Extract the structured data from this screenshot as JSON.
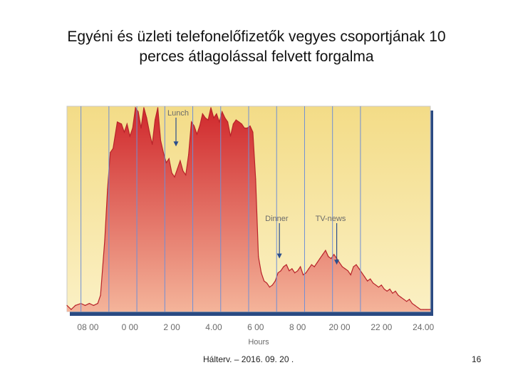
{
  "slide": {
    "title_line1": "Egyéni és üzleti telefonelőfizetők vegyes csoportjának  10",
    "title_line2": "perces átlagolással felvett forgalma",
    "footer": "Hálterv. – 2016. 09. 20 .",
    "page_number": "16"
  },
  "colors": {
    "plot_background_top": "#f3dc87",
    "plot_background_bottom": "#fbf0c4",
    "area_top": "#d0282c",
    "area_bottom": "#f4b49a",
    "area_outline": "#b8232a",
    "gridline": "#6f8fd6",
    "frame_shadow": "#2a4a82",
    "annotation": "#2b4e8c",
    "label": "#6a6a6a"
  },
  "chart_data": {
    "type": "area",
    "title": "",
    "xlabel": "Hours",
    "ylabel": "",
    "grid": "vertical",
    "legend": "none",
    "xlim": [
      0,
      26
    ],
    "ylim": [
      0,
      100
    ],
    "tick_positions": [
      1,
      3,
      5,
      7,
      9,
      11,
      13,
      15,
      17,
      19,
      21
    ],
    "tick_labels": [
      "08 00",
      "0 00",
      "2 00",
      "4.00",
      "6 00",
      "8 00",
      "20 00",
      "22 00",
      "24.00"
    ],
    "tick_label_positions": [
      1.5,
      4.5,
      7.5,
      10.5,
      13.5,
      16.5,
      19.5,
      22.5,
      25.5
    ],
    "x": [
      0,
      0.3,
      0.6,
      1.0,
      1.3,
      1.6,
      1.9,
      2.2,
      2.4,
      2.7,
      2.9,
      3.1,
      3.3,
      3.6,
      3.9,
      4.1,
      4.3,
      4.5,
      4.7,
      4.9,
      5.1,
      5.3,
      5.5,
      5.7,
      5.9,
      6.1,
      6.3,
      6.5,
      6.7,
      6.9,
      7.1,
      7.3,
      7.5,
      7.7,
      7.9,
      8.1,
      8.3,
      8.5,
      8.7,
      8.9,
      9.1,
      9.3,
      9.5,
      9.7,
      9.9,
      10.1,
      10.3,
      10.5,
      10.7,
      10.9,
      11.1,
      11.3,
      11.5,
      11.7,
      11.9,
      12.1,
      12.3,
      12.5,
      12.7,
      12.9,
      13.1,
      13.3,
      13.5,
      13.7,
      13.9,
      14.1,
      14.3,
      14.5,
      14.7,
      14.9,
      15.1,
      15.3,
      15.5,
      15.7,
      15.9,
      16.1,
      16.3,
      16.5,
      16.7,
      16.9,
      17.1,
      17.3,
      17.5,
      17.7,
      17.9,
      18.1,
      18.3,
      18.5,
      18.7,
      18.9,
      19.1,
      19.3,
      19.5,
      19.7,
      19.9,
      20.1,
      20.3,
      20.5,
      20.7,
      20.9,
      21.1,
      21.3,
      21.5,
      21.7,
      21.9,
      22.1,
      22.3,
      22.5,
      22.7,
      22.9,
      23.1,
      23.3,
      23.5,
      23.7,
      23.9,
      24.1,
      24.3,
      24.5,
      24.7,
      24.9,
      25.1,
      25.3,
      25.5,
      25.7,
      26.0
    ],
    "series": [
      {
        "values": [
          3,
          1,
          3,
          4,
          3,
          4,
          3,
          4,
          8,
          35,
          60,
          78,
          80,
          93,
          92,
          88,
          92,
          86,
          90,
          100,
          98,
          90,
          100,
          95,
          88,
          82,
          94,
          100,
          84,
          78,
          73,
          75,
          68,
          66,
          70,
          74,
          69,
          67,
          77,
          93,
          91,
          87,
          91,
          97,
          95,
          94,
          100,
          95,
          97,
          93,
          98,
          95,
          93,
          86,
          92,
          94,
          93,
          92,
          90,
          90,
          91,
          88,
          65,
          27,
          19,
          15,
          14,
          12,
          13,
          15,
          19,
          20,
          22,
          23,
          20,
          21,
          19,
          20,
          22,
          18,
          19,
          21,
          23,
          22,
          24,
          26,
          28,
          30,
          27,
          26,
          28,
          26,
          24,
          22,
          21,
          20,
          18,
          22,
          23,
          21,
          19,
          17,
          15,
          16,
          14,
          13,
          12,
          13,
          11,
          10,
          11,
          9,
          10,
          8,
          7,
          6,
          5,
          6,
          4,
          3,
          2,
          1,
          1,
          1,
          1
        ]
      }
    ],
    "annotations": [
      {
        "text": "Lunch",
        "x": 7.8,
        "y": 81
      },
      {
        "text": "Dinner",
        "x": 15.2,
        "y": 26
      },
      {
        "text": "TV-news",
        "x": 19.3,
        "y": 23
      }
    ]
  }
}
